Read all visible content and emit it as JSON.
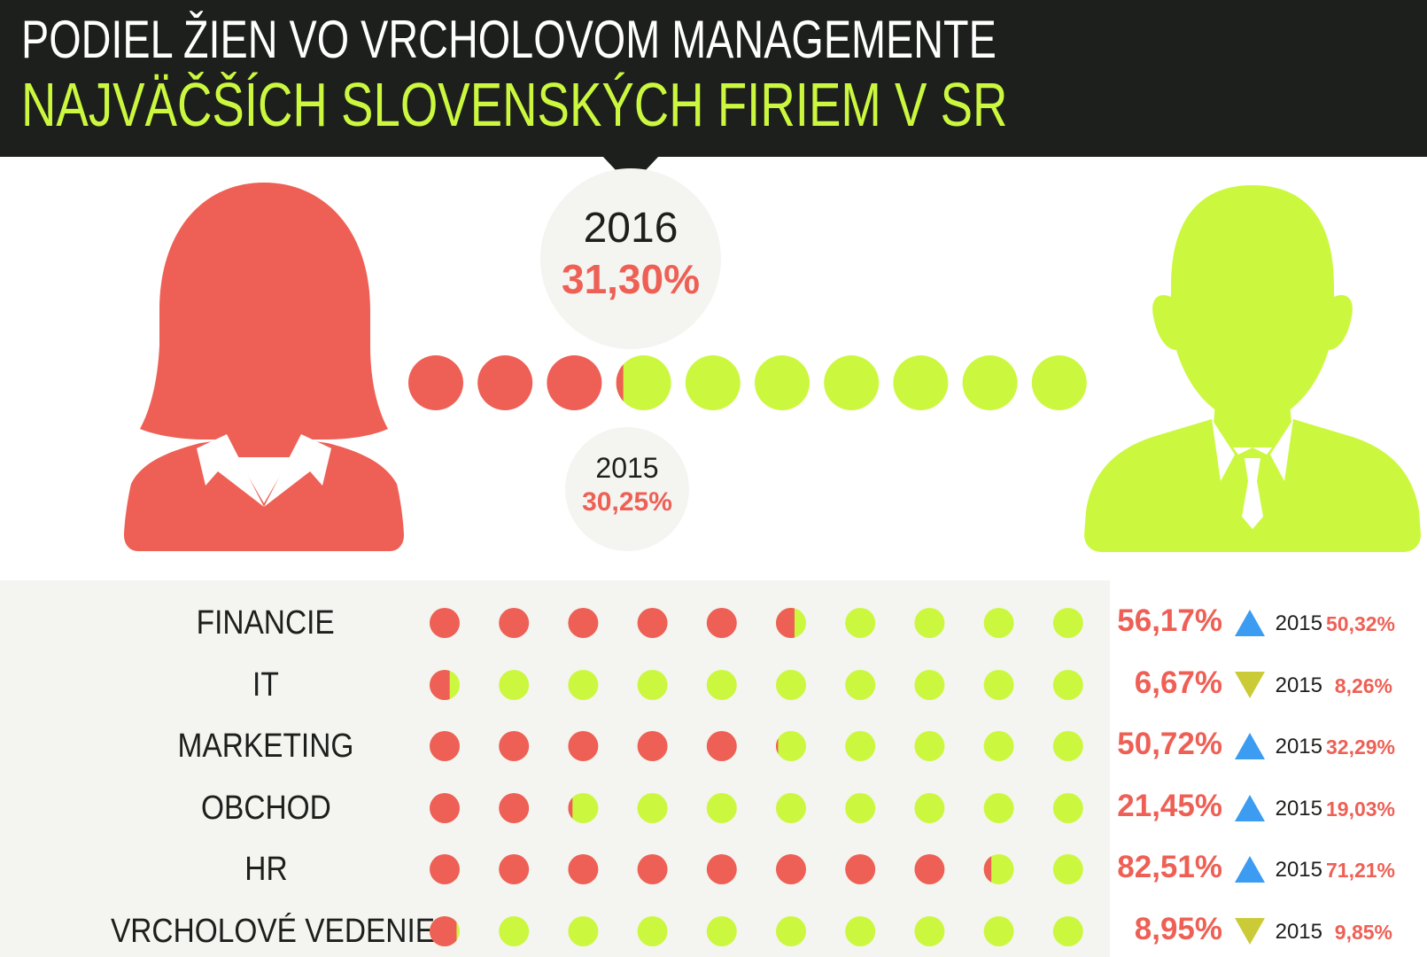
{
  "header": {
    "line1": "PODIEL ŽIEN VO VRCHOLOVOM MANAGEMENTE",
    "line2": "NAJVÄČŠÍCH SLOVENSKÝCH FIRIEM  V SR"
  },
  "colors": {
    "header_bg": "#1d1f1c",
    "women": "#ee6055",
    "men": "#cbf83f",
    "accent_text": "#cbf83f",
    "bubble": "#f4f4f1",
    "panel": "#f4f4f1",
    "trend_up": "#3b9cf1",
    "trend_down": "#cbcb37"
  },
  "icons": {
    "women": "woman-avatar-icon",
    "men": "man-avatar-icon",
    "up": "triangle-up-icon",
    "down": "triangle-down-icon"
  },
  "overall": {
    "year": "2016",
    "value_label": "31,30%",
    "prev_year": "2015",
    "prev_value_label": "30,25%"
  },
  "chart_data": {
    "type": "dot-proportion",
    "dots_per_row": 10,
    "overall": {
      "year_2016": 31.3,
      "year_2015": 30.25
    },
    "categories": [
      "FINANCIE",
      "IT",
      "MARKETING",
      "OBCHOD",
      "HR",
      "VRCHOLOVÉ VEDENIE"
    ],
    "rows": [
      {
        "label": "FINANCIE",
        "value": 56.17,
        "value_label": "56,17%",
        "trend": "up",
        "prev_year": "2015",
        "prev_value": 50.32,
        "prev_label": "50,32%"
      },
      {
        "label": "IT",
        "value": 6.67,
        "value_label": "6,67%",
        "trend": "down",
        "prev_year": "2015",
        "prev_value": 8.26,
        "prev_label": "8,26%"
      },
      {
        "label": "MARKETING",
        "value": 50.72,
        "value_label": "50,72%",
        "trend": "up",
        "prev_year": "2015",
        "prev_value": 32.29,
        "prev_label": "32,29%"
      },
      {
        "label": "OBCHOD",
        "value": 21.45,
        "value_label": "21,45%",
        "trend": "up",
        "prev_year": "2015",
        "prev_value": 19.03,
        "prev_label": "19,03%"
      },
      {
        "label": "HR",
        "value": 82.51,
        "value_label": "82,51%",
        "trend": "up",
        "prev_year": "2015",
        "prev_value": 71.21,
        "prev_label": "71,21%"
      },
      {
        "label": "VRCHOLOVÉ VEDENIE",
        "value": 8.95,
        "value_label": "8,95%",
        "trend": "down",
        "prev_year": "2015",
        "prev_value": 9.85,
        "prev_label": "9,85%"
      }
    ]
  }
}
